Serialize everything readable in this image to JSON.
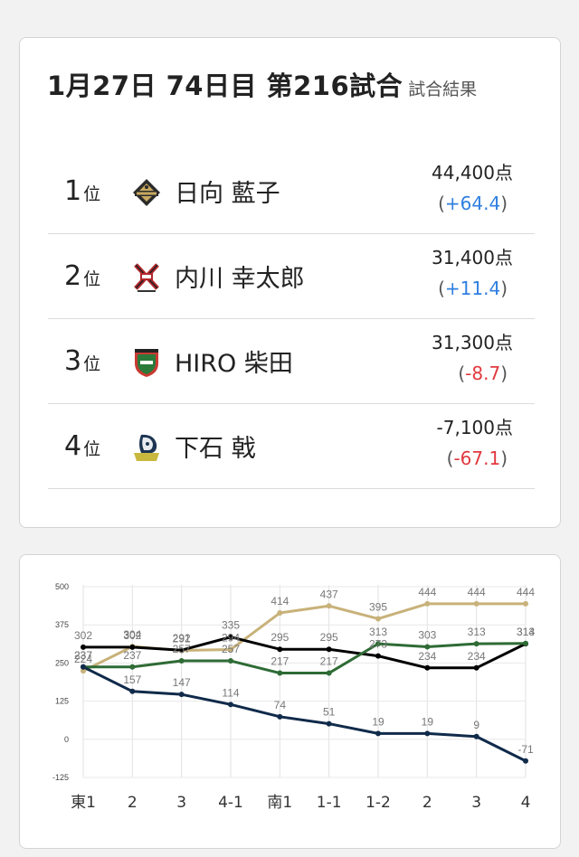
{
  "header": {
    "title": "1月27日 74日目 第216試合",
    "subtitle": "試合結果"
  },
  "results": [
    {
      "rank": "1",
      "rank_unit": "位",
      "logo": "drivens-emblem-icon",
      "name": "日向 藍子",
      "score": "44,400点",
      "open": "(",
      "delta": "+64.4",
      "close": ")",
      "sign": "pos"
    },
    {
      "rank": "2",
      "rank_unit": "位",
      "logo": "phoenix-emblem-icon",
      "name": "内川 幸太郎",
      "score": "31,400点",
      "open": "(",
      "delta": "+11.4",
      "close": ")",
      "sign": "pos"
    },
    {
      "rank": "3",
      "rank_unit": "位",
      "logo": "jets-shield-icon",
      "name": "HIRO 柴田",
      "score": "31,300点",
      "open": "(",
      "delta": "-8.7",
      "close": ")",
      "sign": "neg"
    },
    {
      "rank": "4",
      "rank_unit": "位",
      "logo": "pirates-emblem-icon",
      "name": "下石 戟",
      "score": "-7,100点",
      "open": "(",
      "delta": "-67.1",
      "close": ")",
      "sign": "neg"
    }
  ],
  "chart_data": {
    "type": "line",
    "categories": [
      "東1",
      "2",
      "3",
      "4-1",
      "南1",
      "1-1",
      "1-2",
      "2",
      "3",
      "4"
    ],
    "yticks": [
      "500",
      "375",
      "250",
      "125",
      "0",
      "-125"
    ],
    "ylim": [
      -125,
      500
    ],
    "grid": true,
    "series": [
      {
        "color": "#c8b27a",
        "values": [
          224,
          304,
          291,
          294,
          414,
          437,
          395,
          444,
          444,
          444
        ]
      },
      {
        "color": "#000000",
        "values": [
          302,
          302,
          292,
          335,
          295,
          295,
          273,
          234,
          234,
          313
        ]
      },
      {
        "color": "#2e6b35",
        "values": [
          237,
          237,
          257,
          257,
          217,
          217,
          313,
          303,
          313,
          314
        ]
      },
      {
        "color": "#102a4a",
        "values": [
          237,
          157,
          147,
          114,
          74,
          51,
          19,
          19,
          9,
          -71
        ]
      }
    ]
  }
}
